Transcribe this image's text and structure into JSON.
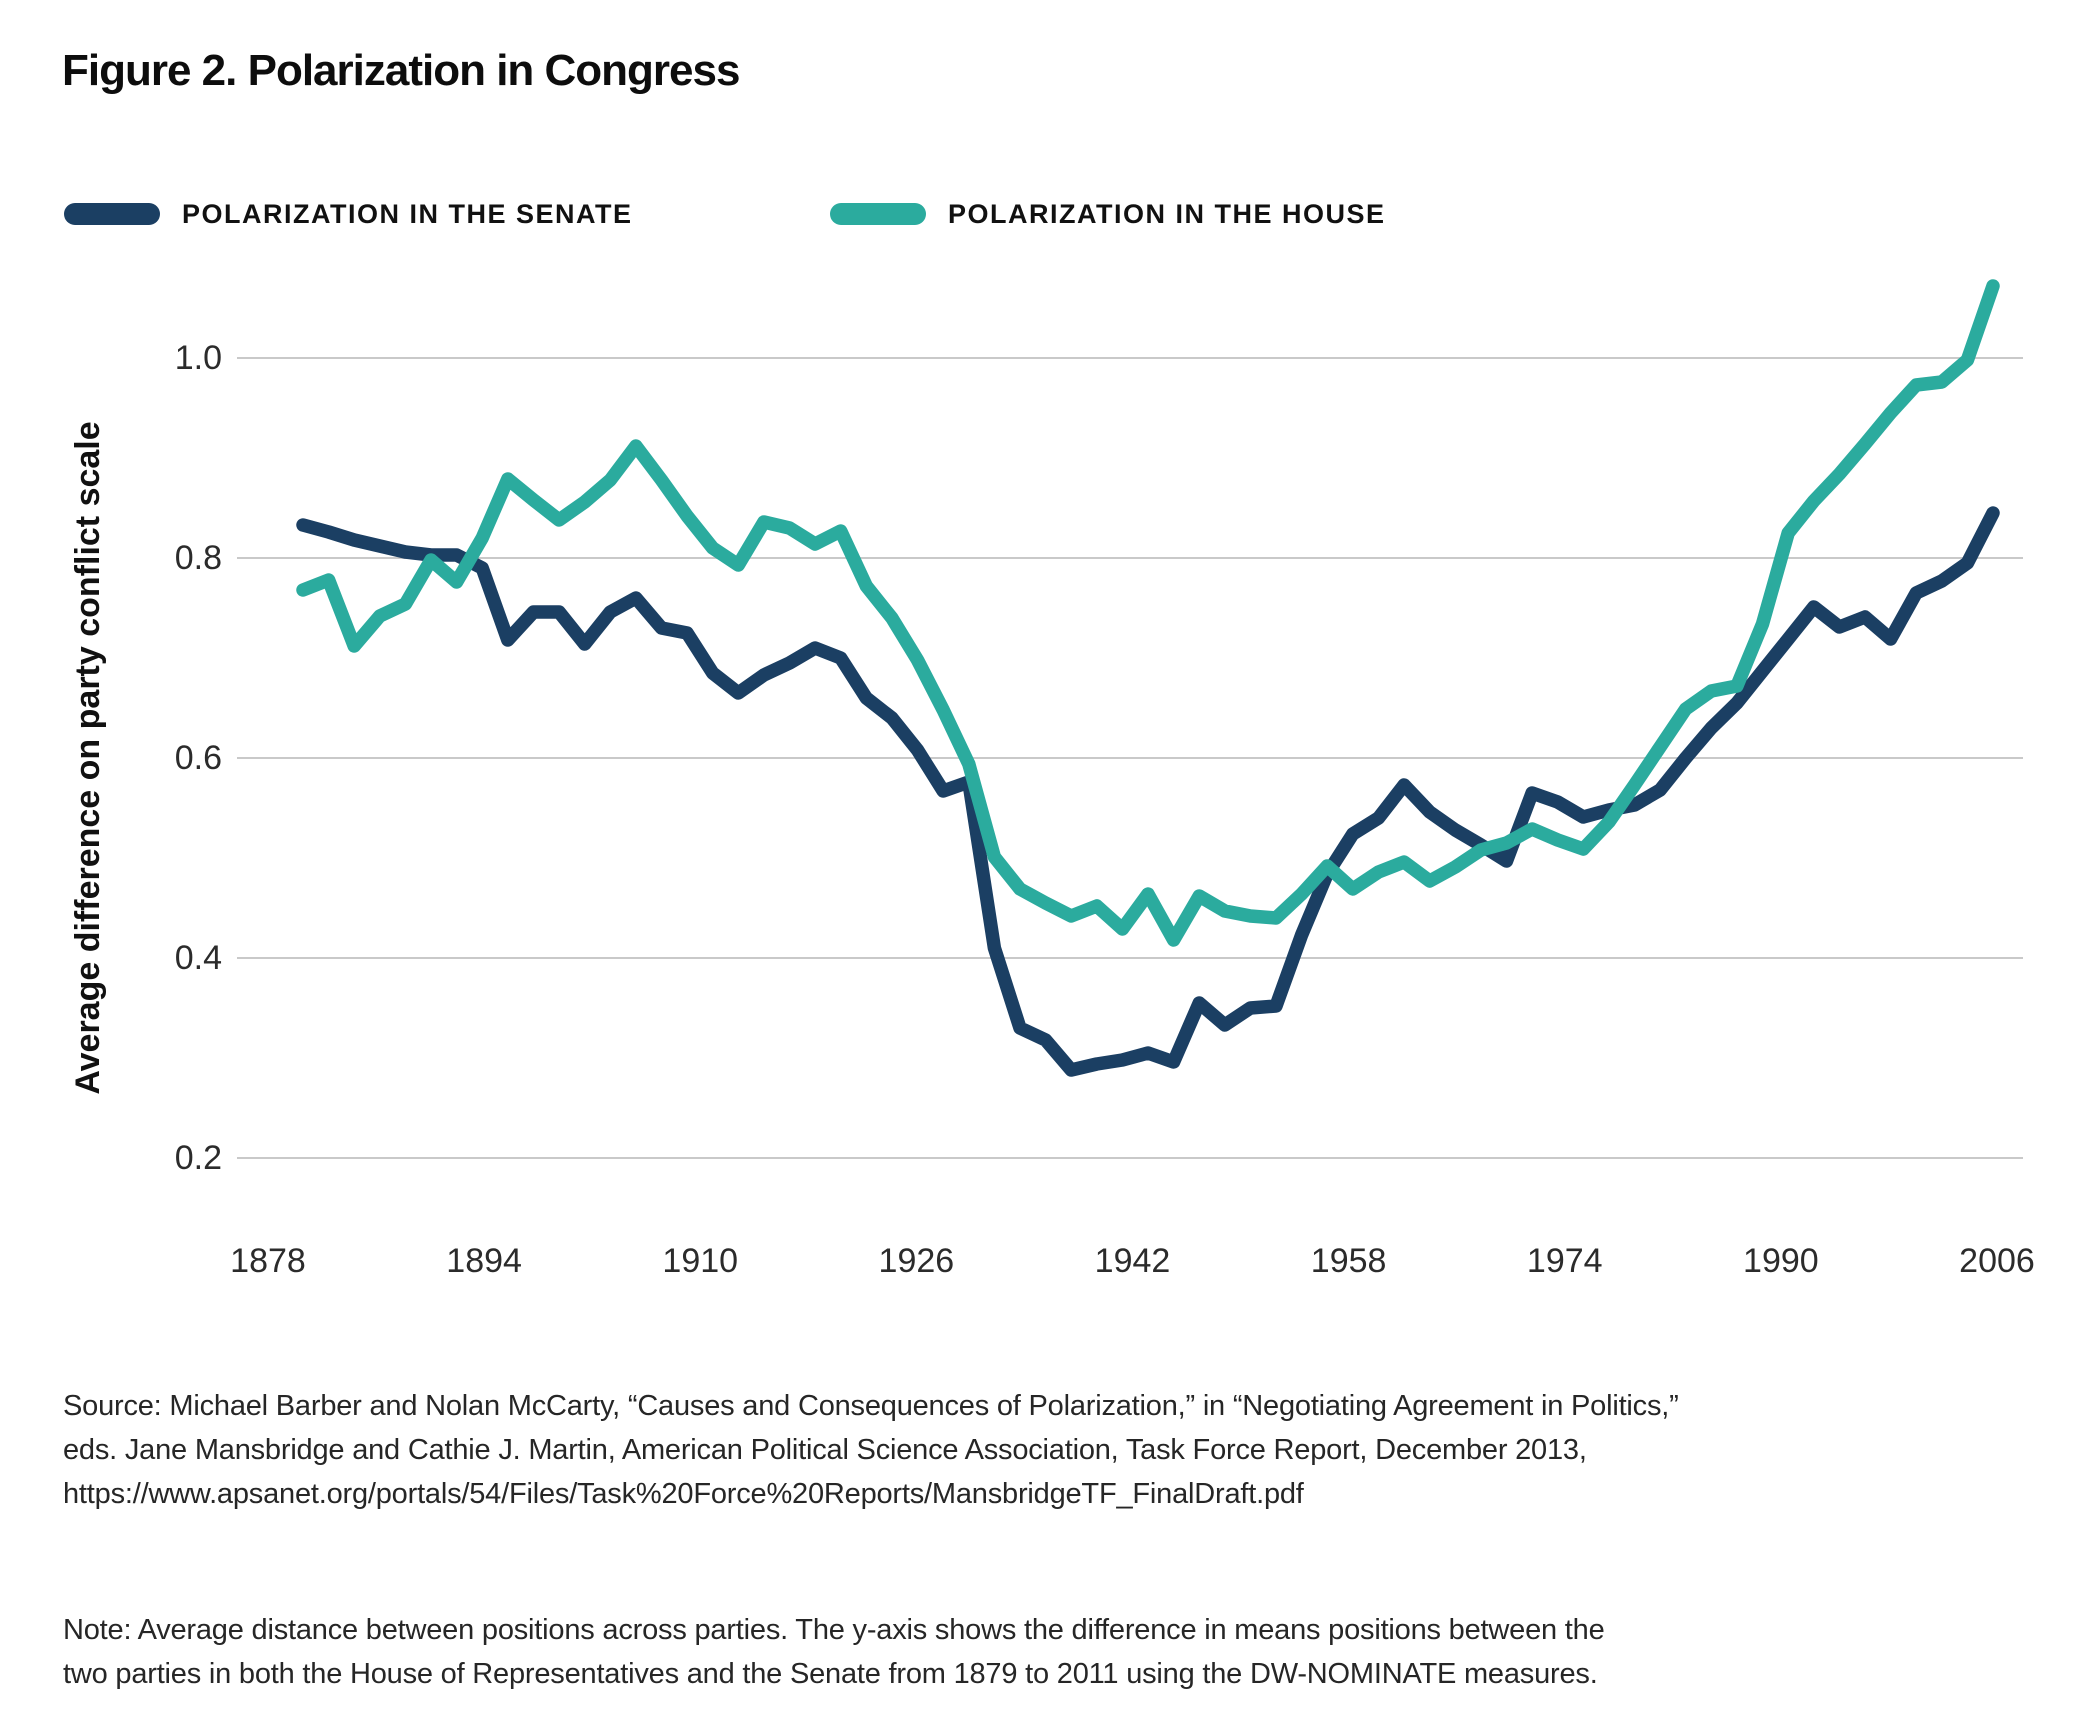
{
  "title": "Figure 2. Polarization in Congress",
  "legend": [
    {
      "label": "POLARIZATION IN THE SENATE",
      "color": "#1b3f63"
    },
    {
      "label": "POLARIZATION IN THE HOUSE",
      "color": "#2bab9e"
    }
  ],
  "chart_data": {
    "type": "line",
    "title": "Figure 2. Polarization in Congress",
    "xlabel": "",
    "ylabel": "Average difference on party conflict scale",
    "grid": "horizontal-only",
    "legend_position": "top-left",
    "ylim": [
      0.13,
      1.12
    ],
    "y_ticks": [
      1.0,
      0.8,
      0.6,
      0.4,
      0.2
    ],
    "x_ticks": [
      1878,
      1894,
      1910,
      1926,
      1942,
      1958,
      1974,
      1990,
      2006
    ],
    "x": [
      1879,
      1881,
      1883,
      1885,
      1887,
      1889,
      1891,
      1893,
      1895,
      1897,
      1899,
      1901,
      1903,
      1905,
      1907,
      1909,
      1911,
      1913,
      1915,
      1917,
      1919,
      1921,
      1923,
      1925,
      1927,
      1929,
      1931,
      1933,
      1935,
      1937,
      1939,
      1941,
      1943,
      1945,
      1947,
      1949,
      1951,
      1953,
      1955,
      1957,
      1959,
      1961,
      1963,
      1965,
      1967,
      1969,
      1971,
      1973,
      1975,
      1977,
      1979,
      1981,
      1983,
      1985,
      1987,
      1989,
      1991,
      1993,
      1995,
      1997,
      1999,
      2001,
      2003,
      2005,
      2007,
      2009,
      2011
    ],
    "series": [
      {
        "name": "Polarization in the Senate",
        "color": "#1b3f63",
        "values": [
          0.833,
          0.826,
          0.818,
          0.812,
          0.806,
          0.803,
          0.803,
          0.79,
          0.718,
          0.746,
          0.746,
          0.714,
          0.746,
          0.76,
          0.73,
          0.725,
          0.685,
          0.665,
          0.683,
          0.695,
          0.71,
          0.7,
          0.66,
          0.64,
          0.608,
          0.567,
          0.576,
          0.41,
          0.33,
          0.318,
          0.288,
          0.294,
          0.298,
          0.305,
          0.296,
          0.355,
          0.333,
          0.35,
          0.352,
          0.423,
          0.484,
          0.524,
          0.54,
          0.573,
          0.546,
          0.528,
          0.513,
          0.497,
          0.565,
          0.556,
          0.541,
          0.548,
          0.553,
          0.568,
          0.6,
          0.63,
          0.655,
          0.687,
          0.719,
          0.751,
          0.731,
          0.741,
          0.719,
          0.765,
          0.777,
          0.795,
          0.845
        ]
      },
      {
        "name": "Polarization in the House",
        "color": "#2bab9e",
        "values": [
          0.768,
          0.778,
          0.712,
          0.742,
          0.754,
          0.798,
          0.776,
          0.82,
          0.879,
          0.858,
          0.838,
          0.856,
          0.878,
          0.912,
          0.878,
          0.842,
          0.81,
          0.793,
          0.836,
          0.83,
          0.814,
          0.827,
          0.772,
          0.74,
          0.698,
          0.648,
          0.594,
          0.501,
          0.469,
          0.455,
          0.442,
          0.452,
          0.429,
          0.464,
          0.418,
          0.462,
          0.447,
          0.442,
          0.44,
          0.464,
          0.492,
          0.469,
          0.486,
          0.496,
          0.477,
          0.491,
          0.508,
          0.515,
          0.529,
          0.518,
          0.509,
          0.536,
          0.573,
          0.611,
          0.649,
          0.667,
          0.672,
          0.734,
          0.825,
          0.857,
          0.884,
          0.914,
          0.945,
          0.973,
          0.976,
          0.998,
          1.072
        ]
      }
    ]
  },
  "source": {
    "lines": [
      "Source: Michael Barber and Nolan McCarty, “Causes and Consequences of Polarization,” in “Negotiating Agreement in Politics,”",
      "eds. Jane Mansbridge and Cathie J. Martin, American Political Science Association, Task Force Report, December 2013,",
      "https://www.apsanet.org/portals/54/Files/Task%20Force%20Reports/MansbridgeTF_FinalDraft.pdf"
    ]
  },
  "note": {
    "lines": [
      "Note: Average distance between positions across parties. The y-axis shows the difference in means positions between the",
      "two parties in both the House of Representatives and the Senate from 1879 to 2011 using the DW-NOMINATE measures."
    ]
  }
}
